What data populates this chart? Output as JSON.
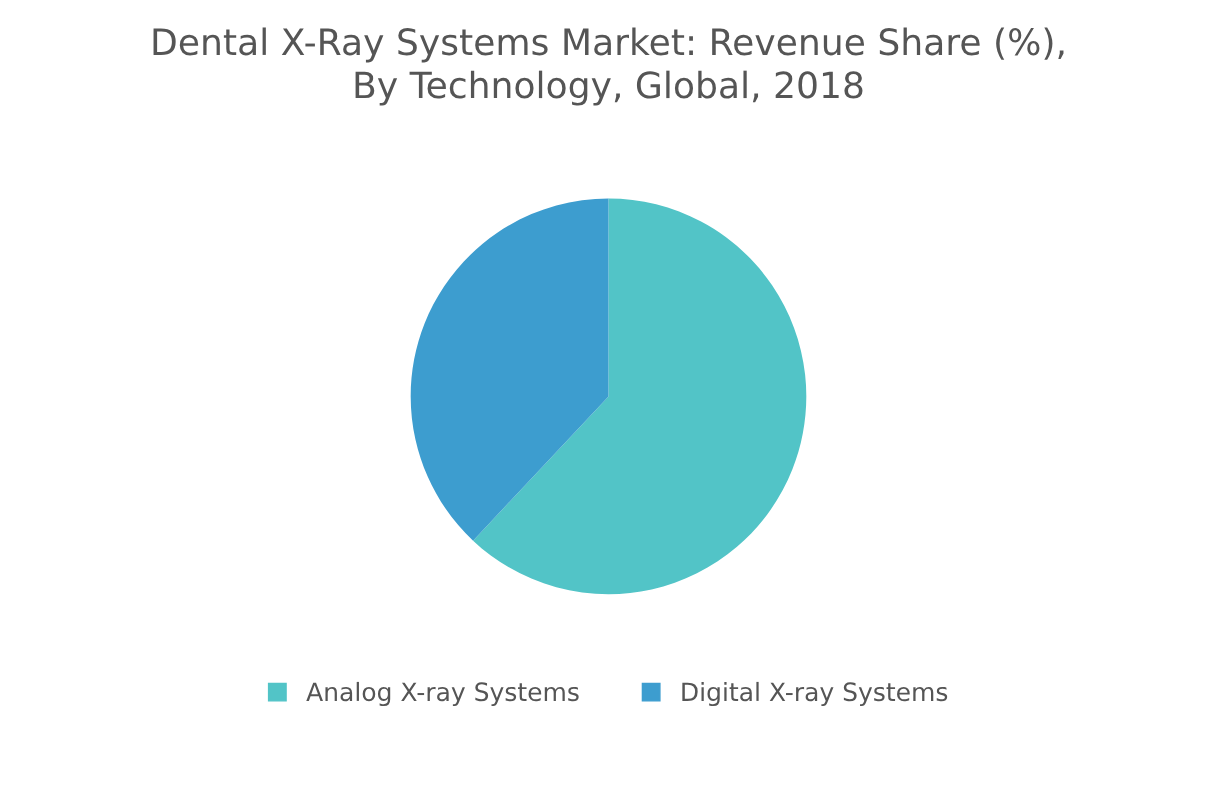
{
  "chart_data": {
    "type": "pie",
    "title": "Dental X-Ray Systems Market: Revenue Share (%),\nBy Technology, Global, 2018",
    "categories": [
      "Analog X-ray Systems",
      "Digital X-ray Systems"
    ],
    "values": [
      62,
      38
    ],
    "colors": [
      "#52c4c7",
      "#3d9dcf"
    ],
    "legend": "bottom"
  }
}
